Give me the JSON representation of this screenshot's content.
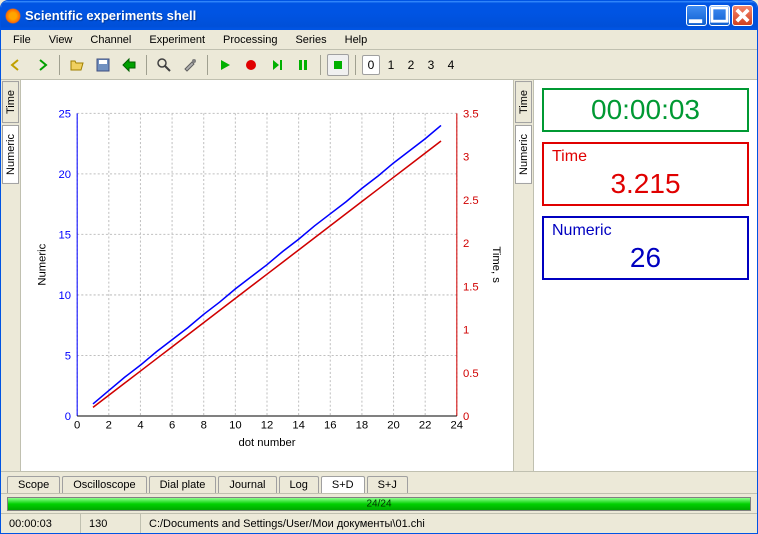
{
  "window": {
    "title": "Scientific experiments shell"
  },
  "menu": [
    "File",
    "View",
    "Channel",
    "Experiment",
    "Processing",
    "Series",
    "Help"
  ],
  "indexes": [
    "0",
    "1",
    "2",
    "3",
    "4"
  ],
  "sidetabs": {
    "numeric": "Numeric",
    "time": "Time"
  },
  "chart": {
    "x_label": "dot number",
    "y1_label": "Numeric",
    "y2_label": "Time, s",
    "x_min": 0,
    "x_max": 24,
    "x_step": 2,
    "y1_min": 0,
    "y1_max": 25,
    "y1_step": 5,
    "y2_min": 0,
    "y2_max": 3.5,
    "y2_step": 0.5,
    "series1_color": "#0000ff",
    "series2_color": "#d00000",
    "grid_color": "#c0c0c0",
    "axis_color": "#000000",
    "series1": [
      [
        1,
        1
      ],
      [
        2,
        2.1
      ],
      [
        3,
        3.2
      ],
      [
        4,
        4.2
      ],
      [
        5,
        5.3
      ],
      [
        6,
        6.3
      ],
      [
        7,
        7.3
      ],
      [
        8,
        8.4
      ],
      [
        9,
        9.4
      ],
      [
        10,
        10.5
      ],
      [
        11,
        11.5
      ],
      [
        12,
        12.5
      ],
      [
        13,
        13.6
      ],
      [
        14,
        14.6
      ],
      [
        15,
        15.7
      ],
      [
        16,
        16.7
      ],
      [
        17,
        17.7
      ],
      [
        18,
        18.8
      ],
      [
        19,
        19.8
      ],
      [
        20,
        20.9
      ],
      [
        21,
        21.9
      ],
      [
        22,
        22.9
      ],
      [
        23,
        24.0
      ]
    ],
    "series2": [
      [
        1,
        0.1
      ],
      [
        2,
        0.24
      ],
      [
        3,
        0.38
      ],
      [
        4,
        0.52
      ],
      [
        5,
        0.66
      ],
      [
        6,
        0.8
      ],
      [
        7,
        0.94
      ],
      [
        8,
        1.08
      ],
      [
        9,
        1.22
      ],
      [
        10,
        1.36
      ],
      [
        11,
        1.5
      ],
      [
        12,
        1.64
      ],
      [
        13,
        1.78
      ],
      [
        14,
        1.92
      ],
      [
        15,
        2.06
      ],
      [
        16,
        2.2
      ],
      [
        17,
        2.34
      ],
      [
        18,
        2.48
      ],
      [
        19,
        2.62
      ],
      [
        20,
        2.76
      ],
      [
        21,
        2.9
      ],
      [
        22,
        3.04
      ],
      [
        23,
        3.18
      ]
    ]
  },
  "readouts": {
    "clock": "00:00:03",
    "time_label": "Time",
    "time_value": "3.215",
    "numeric_label": "Numeric",
    "numeric_value": "26"
  },
  "bottom_tabs": [
    "Scope",
    "Oscilloscope",
    "Dial plate",
    "Journal",
    "Log",
    "S+D",
    "S+J"
  ],
  "bottom_selected": "S+D",
  "progress": {
    "text": "24/24"
  },
  "status": {
    "time": "00:00:03",
    "count": "130",
    "path": "C:/Documents and Settings/User/Мои документы\\01.chi"
  }
}
